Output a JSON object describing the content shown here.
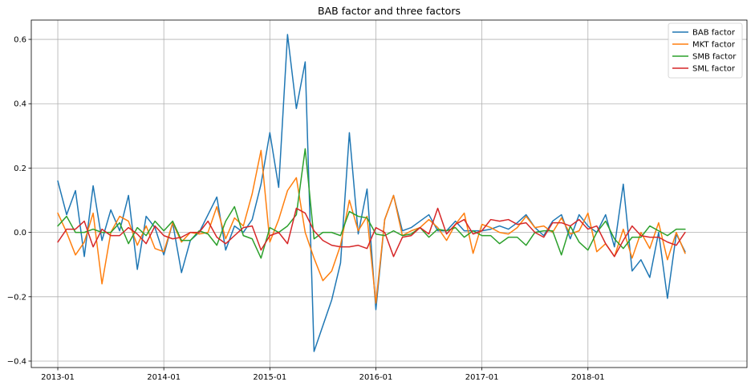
{
  "chart_data": {
    "type": "line",
    "title": "BAB factor and three factors",
    "xlabel": "",
    "ylabel": "",
    "x_start": "2013-01",
    "x_tick_labels": [
      "2013-01",
      "2014-01",
      "2015-01",
      "2016-01",
      "2017-01",
      "2018-01"
    ],
    "xlim": [
      "2012-10",
      "2019-07"
    ],
    "ylim": [
      -0.42,
      0.66
    ],
    "y_ticks": [
      -0.4,
      -0.2,
      0.0,
      0.2,
      0.4,
      0.6
    ],
    "y_tick_labels": [
      "−0.4",
      "−0.2",
      "0.0",
      "0.2",
      "0.4",
      "0.6"
    ],
    "grid": true,
    "legend_position": "top-right",
    "series": [
      {
        "name": "BAB factor",
        "color": "#1f77b4",
        "values": [
          0.16,
          0.055,
          0.13,
          -0.075,
          0.145,
          -0.025,
          0.07,
          0.005,
          0.115,
          -0.115,
          0.05,
          0.015,
          -0.07,
          0.03,
          -0.125,
          -0.025,
          0.0,
          0.055,
          0.11,
          -0.055,
          0.02,
          0.0,
          0.04,
          0.15,
          0.31,
          0.14,
          0.615,
          0.385,
          0.53,
          -0.37,
          -0.29,
          -0.21,
          -0.095,
          0.31,
          -0.005,
          0.135,
          -0.24,
          0.04,
          0.115,
          0.005,
          0.015,
          0.035,
          0.055,
          0.005,
          0.005,
          0.035,
          0.005,
          0.005,
          0.005,
          0.01,
          0.02,
          0.01,
          0.03,
          0.055,
          0.015,
          -0.01,
          0.035,
          0.055,
          -0.02,
          0.055,
          0.02,
          0.0,
          0.055,
          -0.045,
          0.15,
          -0.12,
          -0.085,
          -0.14,
          0.0,
          -0.205,
          -0.005,
          -0.06
        ]
      },
      {
        "name": "MKT factor",
        "color": "#ff7f0e",
        "values": [
          0.06,
          0.0,
          -0.07,
          -0.03,
          0.06,
          -0.16,
          0.0,
          0.05,
          0.035,
          -0.04,
          0.02,
          -0.05,
          -0.06,
          0.03,
          -0.03,
          0.0,
          -0.005,
          0.0,
          0.08,
          -0.02,
          0.045,
          0.02,
          0.12,
          0.255,
          -0.03,
          0.04,
          0.13,
          0.17,
          0.0,
          -0.08,
          -0.15,
          -0.12,
          -0.04,
          0.1,
          0.005,
          0.05,
          -0.22,
          0.04,
          0.115,
          -0.01,
          0.005,
          0.015,
          0.04,
          0.015,
          -0.025,
          0.025,
          0.06,
          -0.065,
          0.025,
          0.015,
          0.0,
          -0.005,
          0.015,
          0.05,
          0.015,
          0.02,
          0.0,
          0.045,
          -0.005,
          0.005,
          0.06,
          -0.06,
          -0.035,
          -0.075,
          0.01,
          -0.08,
          0.0,
          -0.05,
          0.03,
          -0.085,
          0.0,
          -0.065
        ]
      },
      {
        "name": "SMB factor",
        "color": "#2ca02c",
        "values": [
          0.02,
          0.05,
          0.0,
          0.0,
          0.01,
          0.0,
          0.0,
          0.03,
          -0.035,
          0.015,
          -0.01,
          0.035,
          0.005,
          0.035,
          -0.025,
          -0.025,
          0.005,
          -0.005,
          -0.04,
          0.035,
          0.08,
          -0.01,
          -0.02,
          -0.08,
          0.015,
          0.0,
          0.02,
          0.055,
          0.26,
          -0.02,
          0.0,
          0.0,
          -0.01,
          0.065,
          0.05,
          0.045,
          -0.005,
          -0.01,
          0.005,
          -0.01,
          -0.005,
          0.015,
          -0.015,
          0.01,
          0.005,
          0.015,
          -0.015,
          0.005,
          -0.01,
          -0.01,
          -0.035,
          -0.015,
          -0.015,
          -0.04,
          0.0,
          0.005,
          0.005,
          -0.07,
          0.02,
          -0.03,
          -0.055,
          0.0,
          0.035,
          -0.02,
          -0.05,
          -0.015,
          -0.015,
          0.02,
          0.005,
          -0.01,
          0.01,
          0.01
        ]
      },
      {
        "name": "SML factor",
        "color": "#d62728",
        "values": [
          -0.03,
          0.01,
          0.01,
          0.035,
          -0.045,
          0.01,
          -0.01,
          -0.01,
          0.015,
          -0.005,
          -0.035,
          0.02,
          -0.01,
          -0.02,
          -0.015,
          0.0,
          0.0,
          0.035,
          -0.015,
          -0.035,
          -0.01,
          0.015,
          0.02,
          -0.055,
          -0.01,
          0.0,
          -0.035,
          0.075,
          0.06,
          0.005,
          -0.025,
          -0.04,
          -0.045,
          -0.045,
          -0.04,
          -0.05,
          0.015,
          0.0,
          -0.075,
          -0.015,
          -0.01,
          0.015,
          -0.005,
          0.075,
          -0.005,
          0.025,
          0.04,
          -0.005,
          0.005,
          0.04,
          0.035,
          0.04,
          0.025,
          0.03,
          0.0,
          -0.015,
          0.03,
          0.03,
          0.02,
          0.04,
          0.01,
          0.02,
          -0.035,
          -0.075,
          -0.025,
          0.02,
          -0.01,
          -0.015,
          -0.015,
          -0.03,
          -0.04,
          0.0
        ]
      }
    ]
  }
}
